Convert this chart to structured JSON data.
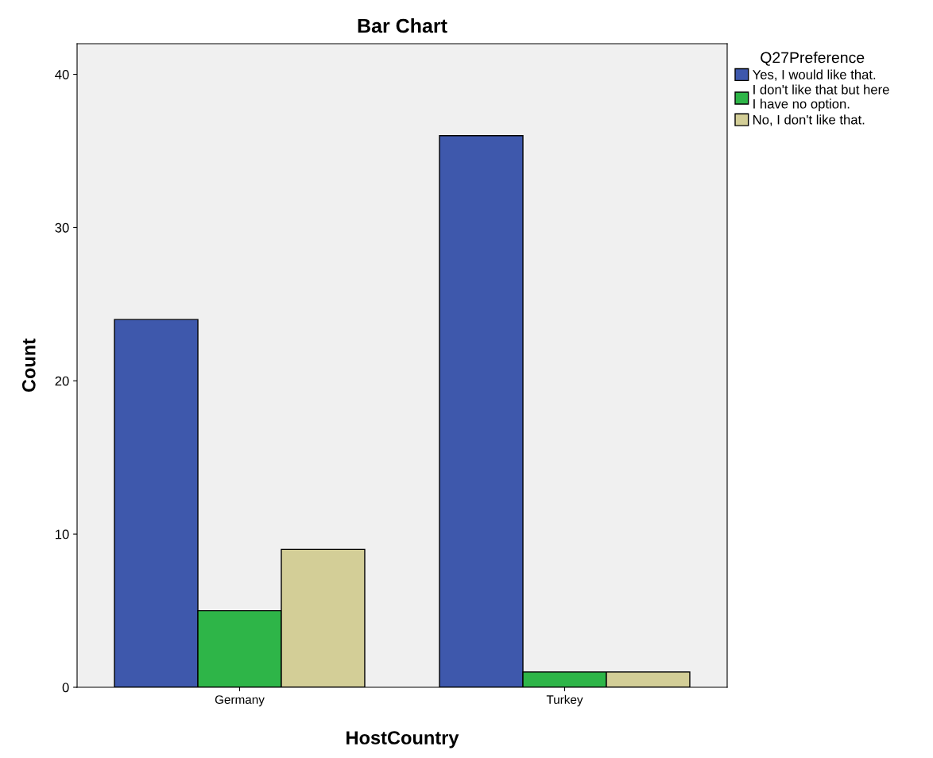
{
  "chart_data": {
    "type": "bar",
    "title": "Bar Chart",
    "xlabel": "HostCountry",
    "ylabel": "Count",
    "legend_title": "Q27Preference",
    "categories": [
      "Germany",
      "Turkey"
    ],
    "series": [
      {
        "name": "Yes, I would like that.",
        "color": "#3e58ac",
        "values": [
          24,
          36
        ]
      },
      {
        "name": "I don't like that but here I have no option.",
        "color": "#2eb548",
        "values": [
          5,
          1
        ]
      },
      {
        "name": "No, I don't like that.",
        "color": "#d3ce97",
        "values": [
          9,
          1
        ]
      }
    ],
    "ylim": [
      0,
      42
    ],
    "yticks": [
      0,
      10,
      20,
      30,
      40
    ],
    "grid": false,
    "legend": "top right"
  }
}
